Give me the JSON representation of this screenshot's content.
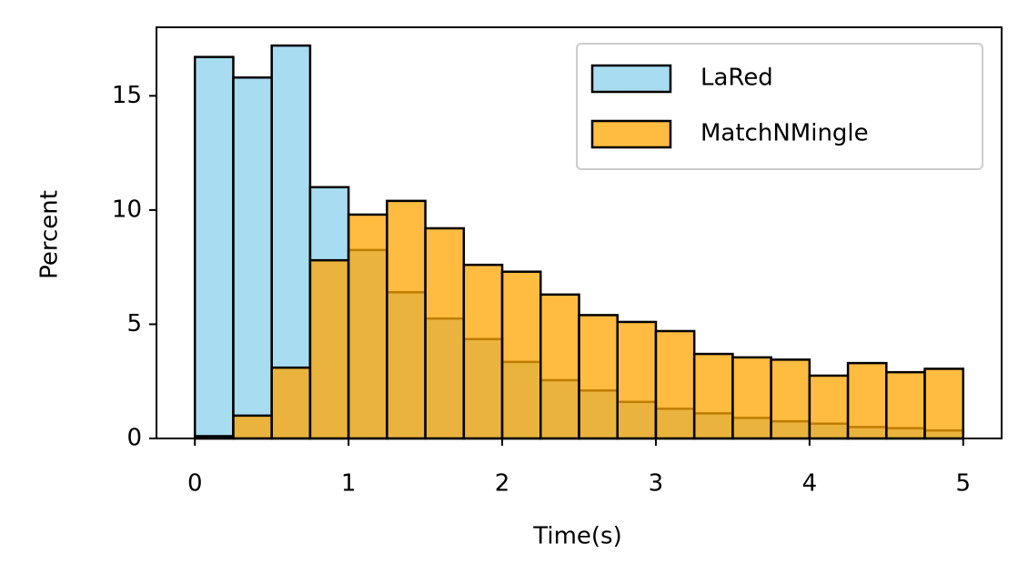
{
  "chart_data": {
    "type": "histogram",
    "xlabel": "Time(s)",
    "ylabel": "Percent",
    "bins": [
      0,
      0.25,
      0.5,
      0.75,
      1,
      1.25,
      1.5,
      1.75,
      2,
      2.25,
      2.5,
      2.75,
      3,
      3.25,
      3.5,
      3.75,
      4,
      4.25,
      4.5,
      4.75,
      5
    ],
    "series": [
      {
        "name": "LaRed",
        "color": "#87ceeb",
        "values": [
          16.7,
          15.8,
          17.2,
          11.0,
          8.25,
          6.4,
          5.25,
          4.35,
          3.35,
          2.55,
          2.1,
          1.6,
          1.3,
          1.1,
          0.9,
          0.75,
          0.65,
          0.5,
          0.45,
          0.35
        ]
      },
      {
        "name": "MatchNMingle",
        "color": "#ffa500",
        "values": [
          0.1,
          1.0,
          3.1,
          7.8,
          9.8,
          10.4,
          9.2,
          7.6,
          7.3,
          6.3,
          5.4,
          5.1,
          4.7,
          3.7,
          3.55,
          3.45,
          2.75,
          3.3,
          2.9,
          3.05
        ]
      }
    ],
    "xlim": [
      -0.25,
      5.25
    ],
    "ylim": [
      0,
      18
    ],
    "xticks": [
      0,
      1,
      2,
      3,
      4,
      5
    ],
    "yticks": [
      0,
      5,
      10,
      15
    ],
    "legend": "upper right"
  }
}
